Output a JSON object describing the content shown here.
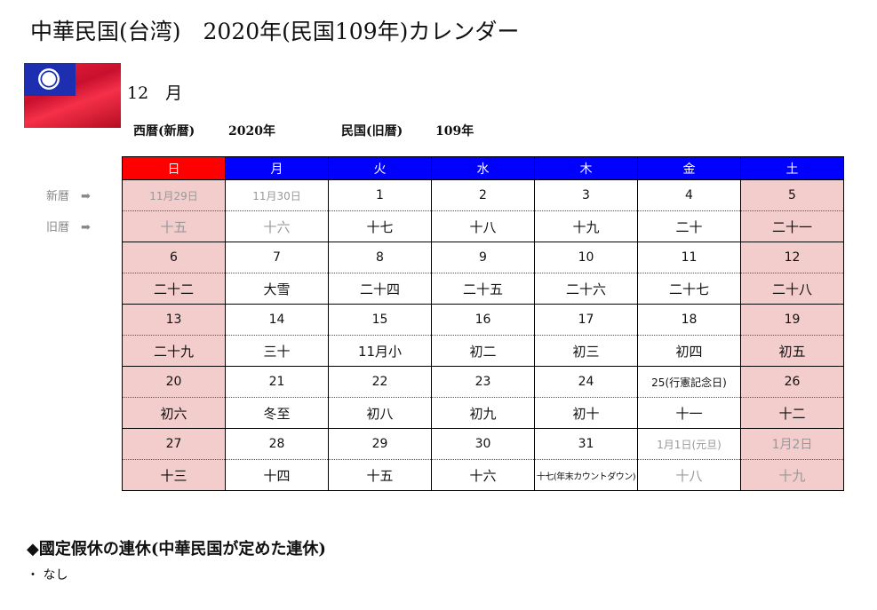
{
  "title": "中華民国(台湾)　2020年(民国109年)カレンダー",
  "month": "12　月",
  "era": {
    "western_label": "西暦(新暦)",
    "western_year": "2020年",
    "minguo_label": "民国(旧暦)",
    "minguo_year": "109年"
  },
  "side_labels": {
    "solar": "新暦　➡",
    "lunar": "旧暦　➡"
  },
  "weekdays": [
    "日",
    "月",
    "火",
    "水",
    "木",
    "金",
    "土"
  ],
  "colors": {
    "sunday_header": "#ff0000",
    "weekday_header": "#0000ff",
    "weekend_bg": "#f3cccc"
  },
  "weeks": [
    {
      "solar": [
        "11月29日",
        "11月30日",
        "1",
        "2",
        "3",
        "4",
        "5"
      ],
      "lunar": [
        "十五",
        "十六",
        "十七",
        "十八",
        "十九",
        "二十",
        "二十一"
      ],
      "gray": [
        0,
        1
      ]
    },
    {
      "solar": [
        "6",
        "7",
        "8",
        "9",
        "10",
        "11",
        "12"
      ],
      "lunar": [
        "二十二",
        "大雪",
        "二十四",
        "二十五",
        "二十六",
        "二十七",
        "二十八"
      ],
      "gray": []
    },
    {
      "solar": [
        "13",
        "14",
        "15",
        "16",
        "17",
        "18",
        "19"
      ],
      "lunar": [
        "二十九",
        "三十",
        "11月小",
        "初二",
        "初三",
        "初四",
        "初五"
      ],
      "gray": []
    },
    {
      "solar": [
        "20",
        "21",
        "22",
        "23",
        "24",
        "25(行憲記念日)",
        "26"
      ],
      "lunar": [
        "初六",
        "冬至",
        "初八",
        "初九",
        "初十",
        "十一",
        "十二"
      ],
      "gray": []
    },
    {
      "solar": [
        "27",
        "28",
        "29",
        "30",
        "31",
        "1月1日(元旦)",
        "1月2日"
      ],
      "lunar": [
        "十三",
        "十四",
        "十五",
        "十六",
        "十七(年末カウントダウン)",
        "十八",
        "十九"
      ],
      "gray": [
        5,
        6
      ]
    }
  ],
  "holidays": {
    "heading": "◆國定假休の連休(中華民国が定めた連休)",
    "items": [
      "・ なし"
    ]
  }
}
